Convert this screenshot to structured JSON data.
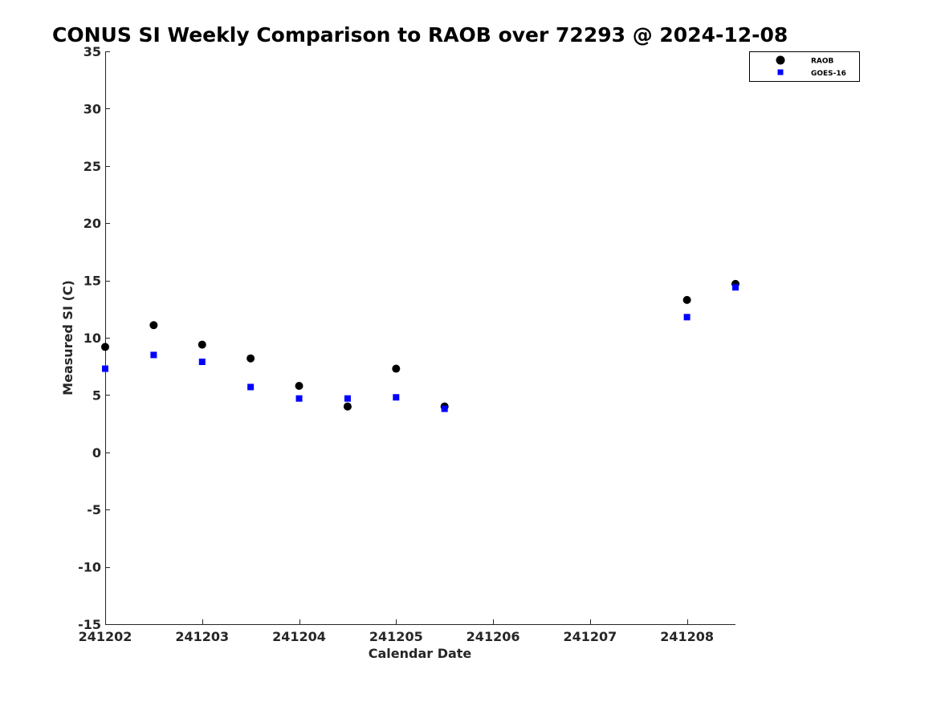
{
  "chart_data": {
    "type": "scatter",
    "title": "CONUS SI Weekly Comparison to RAOB over 72293 @ 2024-12-08",
    "xlabel": "Calendar Date",
    "ylabel": "Measured SI (C)",
    "xlim": [
      241202,
      241208.5
    ],
    "ylim": [
      -15,
      35
    ],
    "x_ticks": [
      241202,
      241203,
      241204,
      241205,
      241206,
      241207,
      241208
    ],
    "x_tick_labels": [
      "241202",
      "241203",
      "241204",
      "241205",
      "241206",
      "241207",
      "241208"
    ],
    "y_ticks": [
      -15,
      -10,
      -5,
      0,
      5,
      10,
      15,
      20,
      25,
      30,
      35
    ],
    "y_tick_labels": [
      "-15",
      "-10",
      "-5",
      "0",
      "5",
      "10",
      "15",
      "20",
      "25",
      "30",
      "35"
    ],
    "grid": false,
    "legend_position": "top-right",
    "series": [
      {
        "name": "RAOB",
        "marker": "circle",
        "color": "#000000",
        "x": [
          241202,
          241202.5,
          241203,
          241203.5,
          241204,
          241204.5,
          241205,
          241205.5,
          241208,
          241208.5
        ],
        "y": [
          9.2,
          11.1,
          9.4,
          8.2,
          5.8,
          4.0,
          7.3,
          4.0,
          13.3,
          14.7
        ]
      },
      {
        "name": "GOES-16",
        "marker": "square",
        "color": "#0000ff",
        "x": [
          241202,
          241202.5,
          241203,
          241203.5,
          241204,
          241204.5,
          241205,
          241205.5,
          241208,
          241208.5
        ],
        "y": [
          7.3,
          8.5,
          7.9,
          5.7,
          4.7,
          4.7,
          4.8,
          3.8,
          11.8,
          14.4
        ]
      }
    ]
  }
}
